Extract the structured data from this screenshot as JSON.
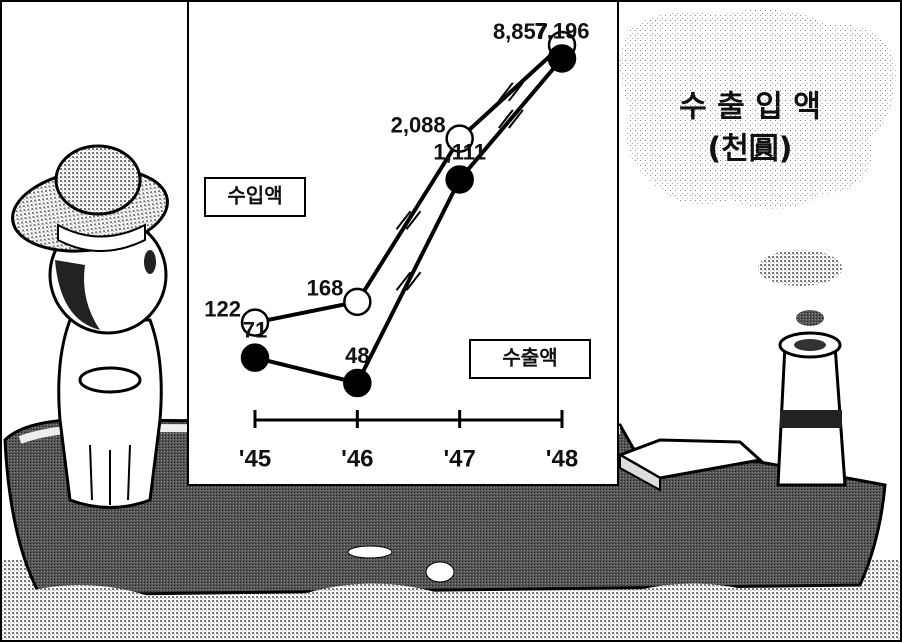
{
  "chart_data": {
    "type": "line",
    "title": "수 출 입 액",
    "subtitle": "(천圓)",
    "log_scale": true,
    "categories": [
      "'45",
      "'46",
      "'47",
      "'48"
    ],
    "series": [
      {
        "name": "수입액",
        "color": "#ffffff",
        "values": [
          122,
          168,
          2088,
          8857
        ],
        "value_labels": [
          "122",
          "168",
          "2,088",
          "8,857"
        ]
      },
      {
        "name": "수출액",
        "color": "#000000",
        "values": [
          71,
          48,
          1111,
          7196
        ],
        "value_labels": [
          "71",
          "48",
          "1,111",
          "7,196"
        ]
      }
    ]
  }
}
